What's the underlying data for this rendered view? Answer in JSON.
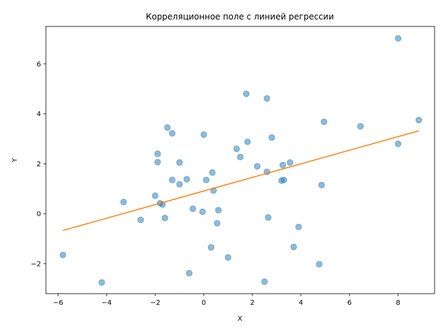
{
  "chart_data": {
    "type": "scatter",
    "title": "Корреляционное поле с линией регрессии",
    "xlabel": "X",
    "ylabel": "Y",
    "xlim": [
      -6.5,
      9.5
    ],
    "ylim": [
      -3.2,
      7.5
    ],
    "xticks": [
      -6,
      -4,
      -2,
      0,
      2,
      4,
      6,
      8
    ],
    "yticks": [
      -2,
      0,
      2,
      4,
      6
    ],
    "tick_labels": {
      "x": [
        "−6",
        "−4",
        "−2",
        "0",
        "2",
        "4",
        "6",
        "8"
      ],
      "y": [
        "−2",
        "0",
        "2",
        "4",
        "6"
      ]
    },
    "grid": false,
    "legend": "none",
    "colors": {
      "points": "#1f77b4",
      "regression": "#ff7f0e"
    },
    "series": [
      {
        "kind": "scatter",
        "points": [
          [
            -5.8,
            -1.65
          ],
          [
            -4.2,
            -2.75
          ],
          [
            -3.3,
            0.47
          ],
          [
            -2.6,
            -0.25
          ],
          [
            -2.0,
            0.72
          ],
          [
            -1.9,
            2.4
          ],
          [
            -1.9,
            2.07
          ],
          [
            -1.8,
            0.42
          ],
          [
            -1.7,
            0.37
          ],
          [
            -1.6,
            -0.17
          ],
          [
            -1.5,
            3.45
          ],
          [
            -1.3,
            1.35
          ],
          [
            -1.3,
            3.22
          ],
          [
            -1.0,
            2.05
          ],
          [
            -1.0,
            1.18
          ],
          [
            -0.7,
            1.38
          ],
          [
            -0.6,
            -2.38
          ],
          [
            -0.45,
            0.2
          ],
          [
            -0.05,
            0.08
          ],
          [
            0.0,
            3.17
          ],
          [
            0.1,
            1.35
          ],
          [
            0.3,
            -1.35
          ],
          [
            0.35,
            1.65
          ],
          [
            0.4,
            0.93
          ],
          [
            0.55,
            -0.38
          ],
          [
            0.6,
            0.14
          ],
          [
            1.0,
            -1.75
          ],
          [
            1.35,
            2.6
          ],
          [
            1.5,
            2.27
          ],
          [
            1.75,
            4.8
          ],
          [
            1.8,
            2.88
          ],
          [
            2.2,
            1.9
          ],
          [
            2.5,
            -2.72
          ],
          [
            2.6,
            1.68
          ],
          [
            2.6,
            4.62
          ],
          [
            2.65,
            -0.15
          ],
          [
            2.8,
            3.05
          ],
          [
            3.2,
            1.33
          ],
          [
            3.25,
            1.95
          ],
          [
            3.3,
            1.35
          ],
          [
            3.55,
            2.05
          ],
          [
            3.7,
            -1.33
          ],
          [
            3.9,
            -0.53
          ],
          [
            4.75,
            -2.02
          ],
          [
            4.85,
            1.15
          ],
          [
            4.95,
            3.68
          ],
          [
            6.45,
            3.5
          ],
          [
            8.0,
            7.02
          ],
          [
            8.0,
            2.8
          ],
          [
            8.85,
            3.75
          ]
        ]
      },
      {
        "kind": "line",
        "points": [
          [
            -5.8,
            -0.67
          ],
          [
            8.85,
            3.32
          ]
        ]
      }
    ]
  }
}
